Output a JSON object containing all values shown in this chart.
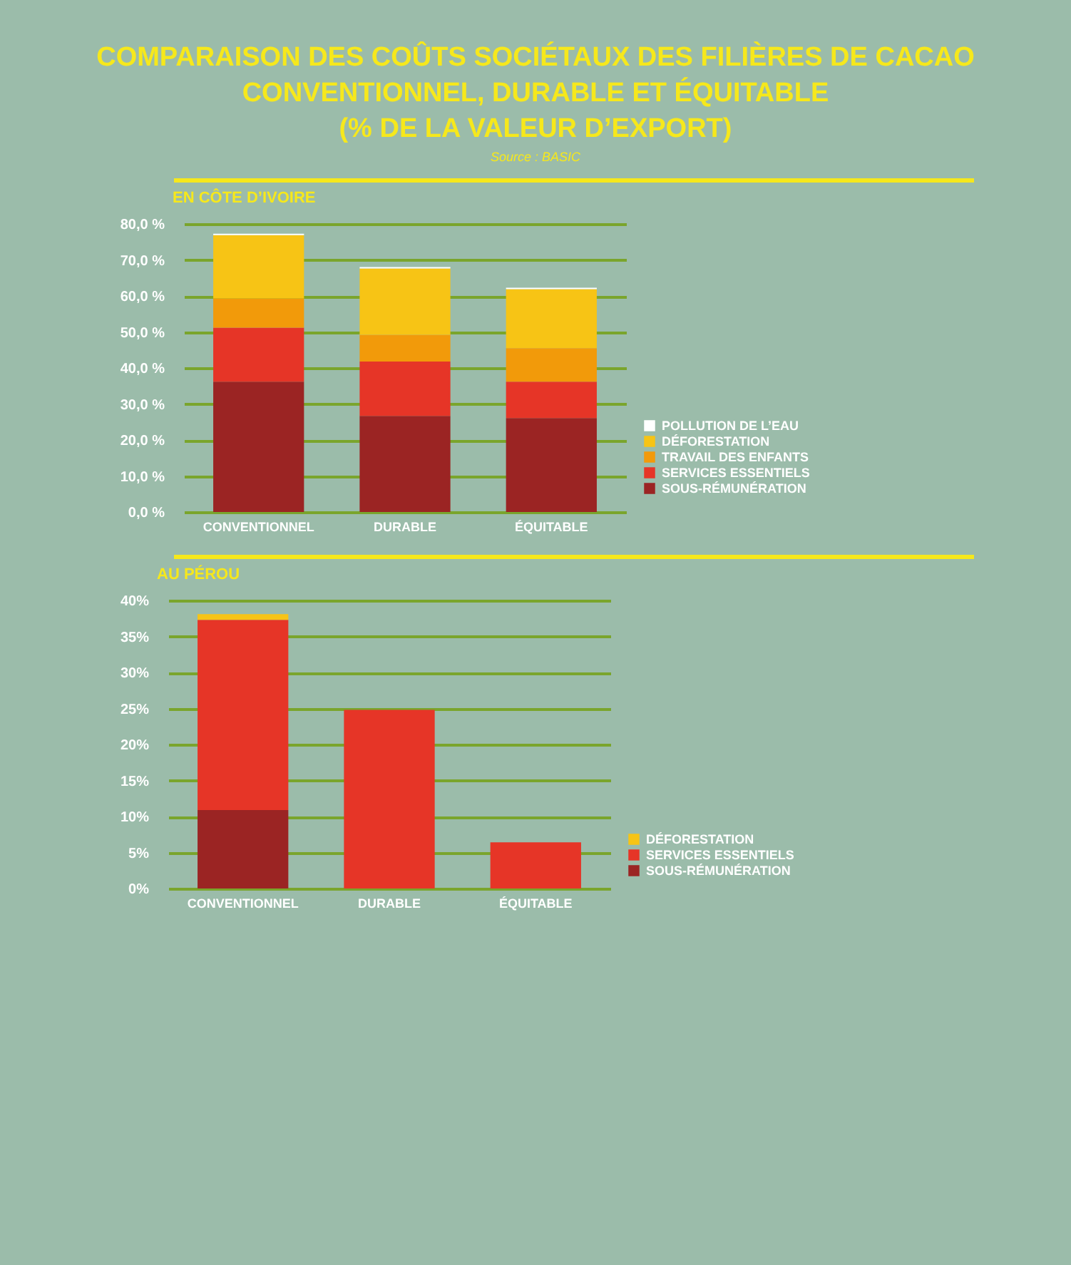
{
  "chart_data": [
    {
      "type": "bar",
      "title": "COMPARAISON DES COÛTS SOCIÉTAUX DES FILIÈRES DE CACAO\nCONVENTIONNEL, DURABLE ET ÉQUITABLE\n(% DE LA VALEUR D’EXPORT)",
      "subtitle": "EN CÔTE D’IVOIRE",
      "annotations": [
        "Source : BASIC"
      ],
      "categories": [
        "CONVENTIONNEL",
        "DURABLE",
        "ÉQUITABLE"
      ],
      "stacked": true,
      "series": [
        {
          "name": "SOUS-RÉMUNÉRATION",
          "color": "#9b2423",
          "values": [
            36.2,
            26.7,
            26.1
          ]
        },
        {
          "name": "SERVICES ESSENTIELS",
          "color": "#e63527",
          "values": [
            15.0,
            15.1,
            10.1
          ]
        },
        {
          "name": "TRAVAIL DES ENFANTS",
          "color": "#f29a0a",
          "values": [
            8.1,
            7.4,
            9.3
          ]
        },
        {
          "name": "DÉFORESTATION",
          "color": "#f7c415",
          "values": [
            17.6,
            18.4,
            16.4
          ]
        },
        {
          "name": "POLLUTION DE L’EAU",
          "color": "#ffffff",
          "values": [
            0.4,
            0.4,
            0.4
          ]
        }
      ],
      "ylim": [
        0,
        80
      ],
      "yticks": [
        {
          "value": 0,
          "label": "0,0 %"
        },
        {
          "value": 10,
          "label": "10,0 %"
        },
        {
          "value": 20,
          "label": "20,0 %"
        },
        {
          "value": 30,
          "label": "30,0 %"
        },
        {
          "value": 40,
          "label": "40,0 %"
        },
        {
          "value": 50,
          "label": "50,0 %"
        },
        {
          "value": 60,
          "label": "60,0 %"
        },
        {
          "value": 70,
          "label": "70,0 %"
        },
        {
          "value": 80,
          "label": "80,0 %"
        }
      ],
      "grid": "y",
      "legend": "bottom right"
    },
    {
      "type": "bar",
      "subtitle": "AU PÉROU",
      "categories": [
        "CONVENTIONNEL",
        "DURABLE",
        "ÉQUITABLE"
      ],
      "stacked": true,
      "series": [
        {
          "name": "SOUS-RÉMUNÉRATION",
          "color": "#9b2423",
          "values": [
            10.9,
            0,
            0
          ]
        },
        {
          "name": "SERVICES ESSENTIELS",
          "color": "#e63527",
          "values": [
            26.4,
            24.8,
            6.4
          ]
        },
        {
          "name": "DÉFORESTATION",
          "color": "#f7c415",
          "values": [
            0.8,
            0,
            0
          ]
        }
      ],
      "ylim": [
        0,
        40
      ],
      "yticks": [
        {
          "value": 0,
          "label": "0%"
        },
        {
          "value": 5,
          "label": "5%"
        },
        {
          "value": 10,
          "label": "10%"
        },
        {
          "value": 15,
          "label": "15%"
        },
        {
          "value": 20,
          "label": "20%"
        },
        {
          "value": 25,
          "label": "25%"
        },
        {
          "value": 30,
          "label": "30%"
        },
        {
          "value": 35,
          "label": "35%"
        },
        {
          "value": 40,
          "label": "40%"
        }
      ],
      "grid": "y",
      "legend": "bottom right"
    }
  ]
}
